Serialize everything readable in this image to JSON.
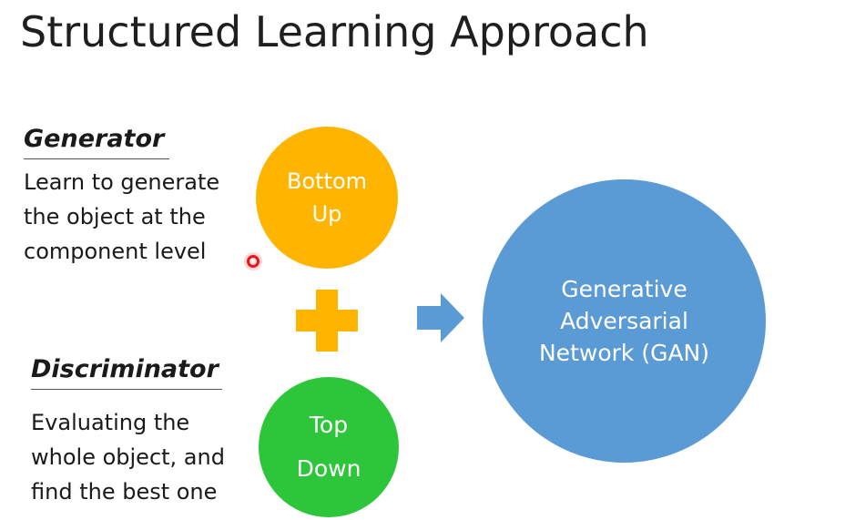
{
  "title": "Structured Learning Approach",
  "generator": {
    "heading": "Generator",
    "lines": [
      "Learn to generate",
      "the object at the",
      "component level"
    ]
  },
  "discriminator": {
    "heading": "Discriminator",
    "lines": [
      "Evaluating the",
      "whole object, and",
      "find the best one"
    ]
  },
  "bottom_up": {
    "lines": [
      "Bottom",
      "Up"
    ],
    "color": "#FFB400"
  },
  "top_down": {
    "lines": [
      "Top",
      "Down"
    ],
    "color": "#2DC63A"
  },
  "gan": {
    "lines": [
      "Generative",
      "Adversarial",
      "Network (GAN)"
    ],
    "color": "#5B9BD5"
  },
  "plus": {
    "icon": "plus-icon",
    "color": "#FFB400"
  },
  "arrow": {
    "icon": "right-arrow-icon",
    "color": "#5B9BD5"
  },
  "cursor": {
    "icon": "laser-pointer-icon",
    "color": "#E8141E"
  }
}
